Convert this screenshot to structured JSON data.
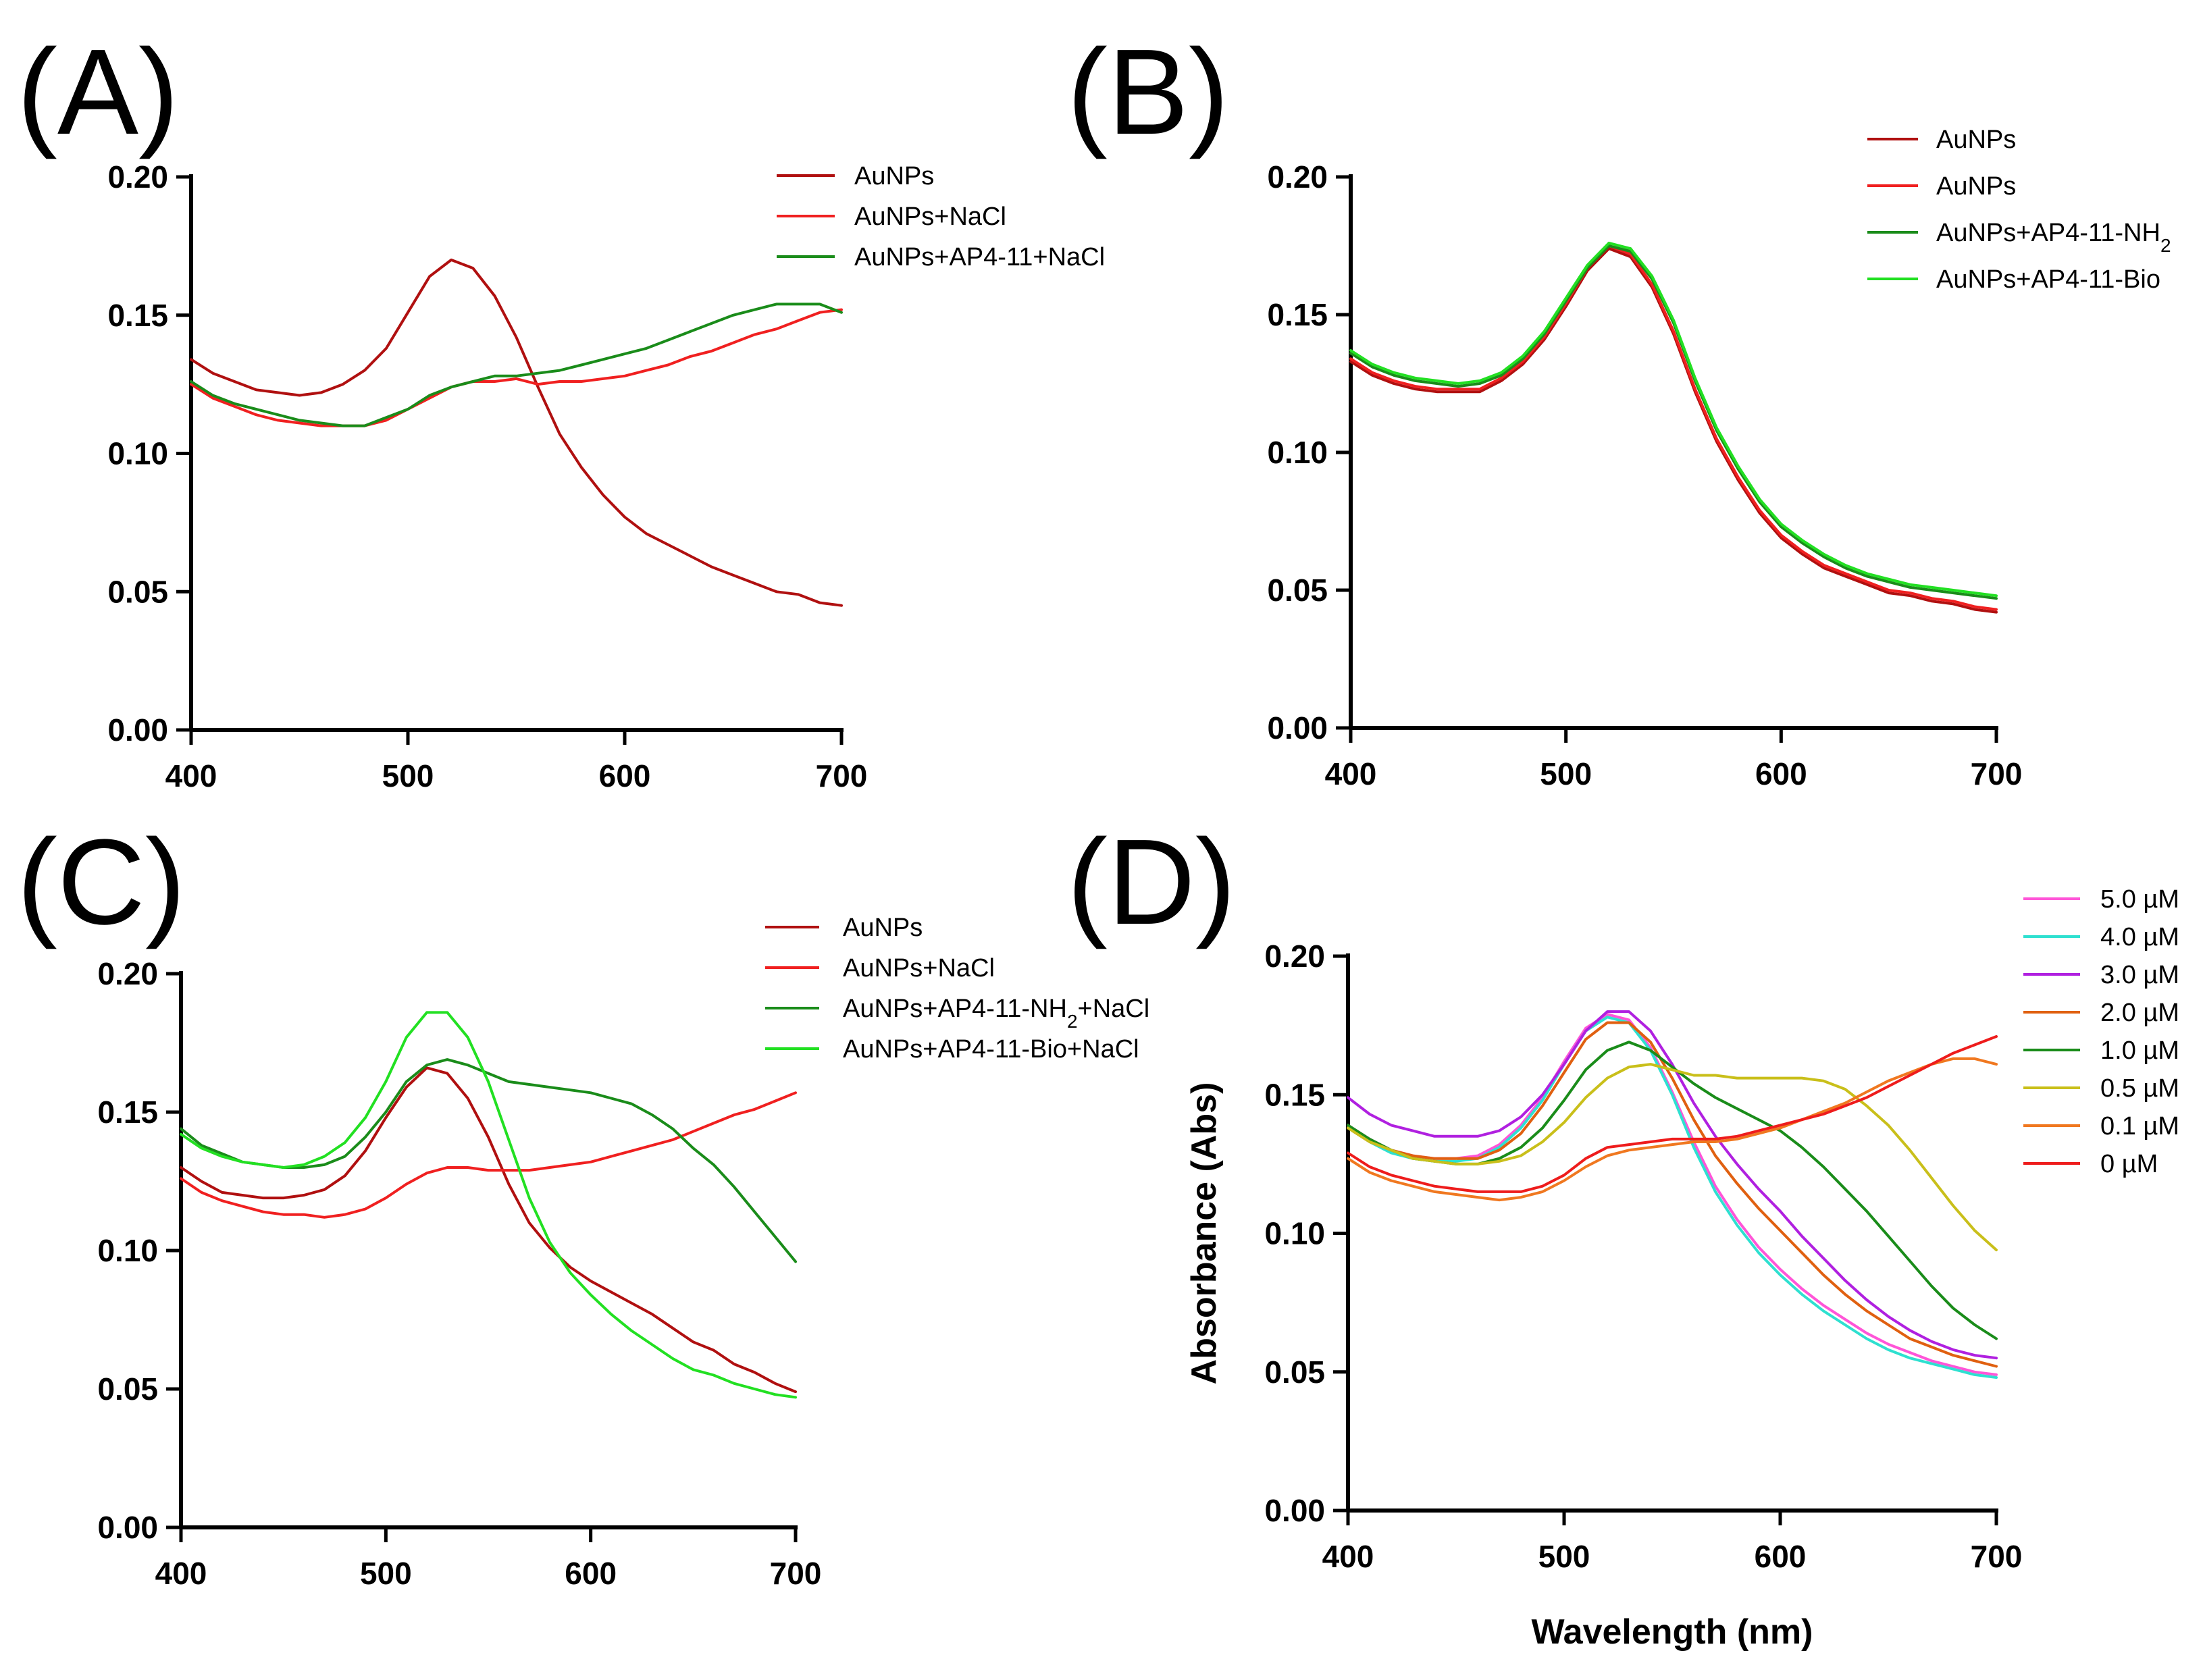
{
  "chart_data": [
    {
      "panel_label": "(A)",
      "type": "line",
      "xlabel": "",
      "ylabel": "",
      "xlim": [
        400,
        700
      ],
      "ylim": [
        0,
        0.2
      ],
      "x_ticks": [
        "400",
        "500",
        "600",
        "700"
      ],
      "y_ticks": [
        "0.00",
        "0.05",
        "0.10",
        "0.15",
        "0.20"
      ],
      "legend_position": "top-right",
      "x": [
        400,
        410,
        420,
        430,
        440,
        450,
        460,
        470,
        480,
        490,
        500,
        510,
        520,
        530,
        540,
        550,
        560,
        570,
        580,
        590,
        600,
        610,
        620,
        630,
        640,
        650,
        660,
        670,
        680,
        690,
        700
      ],
      "series": [
        {
          "name": "AuNPs",
          "name_sub": "",
          "name_after": "",
          "color": "#b01010",
          "values": [
            0.134,
            0.129,
            0.126,
            0.123,
            0.122,
            0.121,
            0.122,
            0.125,
            0.13,
            0.138,
            0.151,
            0.164,
            0.17,
            0.167,
            0.157,
            0.142,
            0.124,
            0.107,
            0.095,
            0.085,
            0.077,
            0.071,
            0.067,
            0.063,
            0.059,
            0.056,
            0.053,
            0.05,
            0.049,
            0.046,
            0.045
          ]
        },
        {
          "name": "AuNPs+NaCl",
          "name_sub": "",
          "name_after": "",
          "color": "#f02020",
          "values": [
            0.125,
            0.12,
            0.117,
            0.114,
            0.112,
            0.111,
            0.11,
            0.11,
            0.11,
            0.112,
            0.116,
            0.12,
            0.124,
            0.126,
            0.126,
            0.127,
            0.125,
            0.126,
            0.126,
            0.127,
            0.128,
            0.13,
            0.132,
            0.135,
            0.137,
            0.14,
            0.143,
            0.145,
            0.148,
            0.151,
            0.152
          ]
        },
        {
          "name": "AuNPs+AP4-11+NaCl",
          "name_sub": "",
          "name_after": "",
          "color": "#1a8c1a",
          "values": [
            0.126,
            0.121,
            0.118,
            0.116,
            0.114,
            0.112,
            0.111,
            0.11,
            0.11,
            0.113,
            0.116,
            0.121,
            0.124,
            0.126,
            0.128,
            0.128,
            0.129,
            0.13,
            0.132,
            0.134,
            0.136,
            0.138,
            0.141,
            0.144,
            0.147,
            0.15,
            0.152,
            0.154,
            0.154,
            0.154,
            0.151
          ]
        }
      ]
    },
    {
      "panel_label": "(B)",
      "type": "line",
      "xlabel": "",
      "ylabel": "",
      "xlim": [
        400,
        700
      ],
      "ylim": [
        0,
        0.2
      ],
      "x_ticks": [
        "400",
        "500",
        "600",
        "700"
      ],
      "y_ticks": [
        "0.00",
        "0.05",
        "0.10",
        "0.15",
        "0.20"
      ],
      "legend_position": "top-right",
      "x": [
        400,
        410,
        420,
        430,
        440,
        450,
        460,
        470,
        480,
        490,
        500,
        510,
        520,
        530,
        540,
        550,
        560,
        570,
        580,
        590,
        600,
        610,
        620,
        630,
        640,
        650,
        660,
        670,
        680,
        690,
        700
      ],
      "series": [
        {
          "name": "AuNPs",
          "name_sub": "",
          "name_after": "",
          "color": "#b01010",
          "values": [
            0.133,
            0.128,
            0.125,
            0.123,
            0.122,
            0.122,
            0.122,
            0.126,
            0.132,
            0.141,
            0.153,
            0.166,
            0.174,
            0.171,
            0.16,
            0.143,
            0.122,
            0.104,
            0.09,
            0.078,
            0.069,
            0.063,
            0.058,
            0.055,
            0.052,
            0.049,
            0.048,
            0.046,
            0.045,
            0.043,
            0.042
          ]
        },
        {
          "name": "AuNPs",
          "name_sub": "",
          "name_after": "",
          "color": "#f02020",
          "values": [
            0.134,
            0.129,
            0.126,
            0.124,
            0.123,
            0.123,
            0.123,
            0.127,
            0.133,
            0.142,
            0.154,
            0.167,
            0.175,
            0.172,
            0.161,
            0.144,
            0.123,
            0.105,
            0.091,
            0.079,
            0.07,
            0.064,
            0.059,
            0.056,
            0.053,
            0.05,
            0.049,
            0.047,
            0.046,
            0.044,
            0.043
          ]
        },
        {
          "name": "AuNPs+AP4-11-NH",
          "name_sub": "2",
          "name_after": "",
          "color": "#1a8c1a",
          "values": [
            0.136,
            0.131,
            0.128,
            0.126,
            0.125,
            0.124,
            0.125,
            0.128,
            0.134,
            0.143,
            0.155,
            0.167,
            0.175,
            0.173,
            0.163,
            0.147,
            0.126,
            0.108,
            0.094,
            0.082,
            0.073,
            0.067,
            0.062,
            0.058,
            0.055,
            0.053,
            0.051,
            0.05,
            0.049,
            0.048,
            0.047
          ]
        },
        {
          "name": "AuNPs+AP4-11-Bio",
          "name_sub": "",
          "name_after": "",
          "color": "#22e022",
          "values": [
            0.137,
            0.132,
            0.129,
            0.127,
            0.126,
            0.125,
            0.126,
            0.129,
            0.135,
            0.144,
            0.156,
            0.168,
            0.176,
            0.174,
            0.164,
            0.148,
            0.127,
            0.109,
            0.095,
            0.083,
            0.074,
            0.068,
            0.063,
            0.059,
            0.056,
            0.054,
            0.052,
            0.051,
            0.05,
            0.049,
            0.048
          ]
        }
      ]
    },
    {
      "panel_label": "(C)",
      "type": "line",
      "xlabel": "",
      "ylabel": "",
      "xlim": [
        400,
        700
      ],
      "ylim": [
        0,
        0.2
      ],
      "x_ticks": [
        "400",
        "500",
        "600",
        "700"
      ],
      "y_ticks": [
        "0.00",
        "0.05",
        "0.10",
        "0.15",
        "0.20"
      ],
      "legend_position": "top-right",
      "x": [
        400,
        410,
        420,
        430,
        440,
        450,
        460,
        470,
        480,
        490,
        500,
        510,
        520,
        530,
        540,
        550,
        560,
        570,
        580,
        590,
        600,
        610,
        620,
        630,
        640,
        650,
        660,
        670,
        680,
        690,
        700
      ],
      "series": [
        {
          "name": "AuNPs",
          "name_sub": "",
          "name_after": "",
          "color": "#b01010",
          "values": [
            0.13,
            0.125,
            0.121,
            0.12,
            0.119,
            0.119,
            0.12,
            0.122,
            0.127,
            0.136,
            0.148,
            0.159,
            0.166,
            0.164,
            0.155,
            0.141,
            0.124,
            0.11,
            0.101,
            0.094,
            0.089,
            0.085,
            0.081,
            0.077,
            0.072,
            0.067,
            0.064,
            0.059,
            0.056,
            0.052,
            0.049
          ]
        },
        {
          "name": "AuNPs+NaCl",
          "name_sub": "",
          "name_after": "",
          "color": "#f02020",
          "values": [
            0.126,
            0.121,
            0.118,
            0.116,
            0.114,
            0.113,
            0.113,
            0.112,
            0.113,
            0.115,
            0.119,
            0.124,
            0.128,
            0.13,
            0.13,
            0.129,
            0.129,
            0.129,
            0.13,
            0.131,
            0.132,
            0.134,
            0.136,
            0.138,
            0.14,
            0.143,
            0.146,
            0.149,
            0.151,
            0.154,
            0.157
          ]
        },
        {
          "name": "AuNPs+AP4-11-NH",
          "name_sub": "2",
          "name_after": "+NaCl",
          "color": "#1a8c1a",
          "values": [
            0.144,
            0.138,
            0.135,
            0.132,
            0.131,
            0.13,
            0.13,
            0.131,
            0.134,
            0.141,
            0.15,
            0.161,
            0.167,
            0.169,
            0.167,
            0.164,
            0.161,
            0.16,
            0.159,
            0.158,
            0.157,
            0.155,
            0.153,
            0.149,
            0.144,
            0.137,
            0.131,
            0.123,
            0.114,
            0.105,
            0.096
          ]
        },
        {
          "name": "AuNPs+AP4-11-Bio+NaCl",
          "name_sub": "",
          "name_after": "",
          "color": "#22e022",
          "values": [
            0.142,
            0.137,
            0.134,
            0.132,
            0.131,
            0.13,
            0.131,
            0.134,
            0.139,
            0.148,
            0.161,
            0.177,
            0.186,
            0.186,
            0.177,
            0.161,
            0.14,
            0.119,
            0.103,
            0.092,
            0.084,
            0.077,
            0.071,
            0.066,
            0.061,
            0.057,
            0.055,
            0.052,
            0.05,
            0.048,
            0.047
          ]
        }
      ]
    },
    {
      "panel_label": "(D)",
      "type": "line",
      "xlabel": "Wavelength (nm)",
      "ylabel": "Absorbance (Abs)",
      "xlim": [
        400,
        700
      ],
      "ylim": [
        0,
        0.2
      ],
      "x_ticks": [
        "400",
        "500",
        "600",
        "700"
      ],
      "y_ticks": [
        "0.00",
        "0.05",
        "0.10",
        "0.15",
        "0.20"
      ],
      "legend_position": "top-right",
      "x": [
        400,
        410,
        420,
        430,
        440,
        450,
        460,
        470,
        480,
        490,
        500,
        510,
        520,
        530,
        540,
        550,
        560,
        570,
        580,
        590,
        600,
        610,
        620,
        630,
        640,
        650,
        660,
        670,
        680,
        690,
        700
      ],
      "series": [
        {
          "name": "5.0 µM",
          "name_sub": "",
          "name_after": "",
          "color": "#ff55d8",
          "values": [
            0.139,
            0.134,
            0.13,
            0.128,
            0.127,
            0.127,
            0.128,
            0.132,
            0.139,
            0.149,
            0.162,
            0.174,
            0.179,
            0.177,
            0.167,
            0.151,
            0.133,
            0.117,
            0.105,
            0.095,
            0.087,
            0.08,
            0.074,
            0.069,
            0.064,
            0.06,
            0.057,
            0.054,
            0.052,
            0.05,
            0.049
          ]
        },
        {
          "name": "4.0 µM",
          "name_sub": "",
          "name_after": "",
          "color": "#2ee0d0",
          "values": [
            0.138,
            0.133,
            0.129,
            0.127,
            0.126,
            0.126,
            0.127,
            0.131,
            0.138,
            0.148,
            0.161,
            0.173,
            0.178,
            0.176,
            0.166,
            0.15,
            0.131,
            0.115,
            0.103,
            0.093,
            0.085,
            0.078,
            0.072,
            0.067,
            0.062,
            0.058,
            0.055,
            0.053,
            0.051,
            0.049,
            0.048
          ]
        },
        {
          "name": "3.0 µM",
          "name_sub": "",
          "name_after": "",
          "color": "#b020e0",
          "values": [
            0.149,
            0.143,
            0.139,
            0.137,
            0.135,
            0.135,
            0.135,
            0.137,
            0.142,
            0.15,
            0.161,
            0.173,
            0.18,
            0.18,
            0.173,
            0.161,
            0.147,
            0.135,
            0.125,
            0.116,
            0.108,
            0.099,
            0.091,
            0.083,
            0.076,
            0.07,
            0.065,
            0.061,
            0.058,
            0.056,
            0.055
          ]
        },
        {
          "name": "2.0 µM",
          "name_sub": "",
          "name_after": "",
          "color": "#e06010",
          "values": [
            0.138,
            0.133,
            0.13,
            0.128,
            0.127,
            0.127,
            0.127,
            0.13,
            0.136,
            0.146,
            0.158,
            0.17,
            0.176,
            0.176,
            0.169,
            0.156,
            0.141,
            0.128,
            0.118,
            0.109,
            0.101,
            0.093,
            0.085,
            0.078,
            0.072,
            0.067,
            0.062,
            0.059,
            0.056,
            0.054,
            0.052
          ]
        },
        {
          "name": "1.0 µM",
          "name_sub": "",
          "name_after": "",
          "color": "#1a8c1a",
          "values": [
            0.139,
            0.134,
            0.13,
            0.127,
            0.126,
            0.125,
            0.125,
            0.127,
            0.131,
            0.138,
            0.148,
            0.159,
            0.166,
            0.169,
            0.166,
            0.16,
            0.154,
            0.149,
            0.145,
            0.141,
            0.137,
            0.131,
            0.124,
            0.116,
            0.108,
            0.099,
            0.09,
            0.081,
            0.073,
            0.067,
            0.062
          ]
        },
        {
          "name": "0.5 µM",
          "name_sub": "",
          "name_after": "",
          "color": "#c9bf1a",
          "values": [
            0.138,
            0.133,
            0.13,
            0.127,
            0.126,
            0.125,
            0.125,
            0.126,
            0.128,
            0.133,
            0.14,
            0.149,
            0.156,
            0.16,
            0.161,
            0.159,
            0.157,
            0.157,
            0.156,
            0.156,
            0.156,
            0.156,
            0.155,
            0.152,
            0.146,
            0.139,
            0.13,
            0.12,
            0.11,
            0.101,
            0.094
          ]
        },
        {
          "name": "0.1 µM",
          "name_sub": "",
          "name_after": "",
          "color": "#f07820",
          "values": [
            0.127,
            0.122,
            0.119,
            0.117,
            0.115,
            0.114,
            0.113,
            0.112,
            0.113,
            0.115,
            0.119,
            0.124,
            0.128,
            0.13,
            0.131,
            0.132,
            0.133,
            0.133,
            0.134,
            0.136,
            0.138,
            0.141,
            0.144,
            0.147,
            0.151,
            0.155,
            0.158,
            0.161,
            0.163,
            0.163,
            0.161
          ]
        },
        {
          "name": "0 µM",
          "name_sub": "",
          "name_after": "",
          "color": "#ee1c1c",
          "values": [
            0.129,
            0.124,
            0.121,
            0.119,
            0.117,
            0.116,
            0.115,
            0.115,
            0.115,
            0.117,
            0.121,
            0.127,
            0.131,
            0.132,
            0.133,
            0.134,
            0.134,
            0.134,
            0.135,
            0.137,
            0.139,
            0.141,
            0.143,
            0.146,
            0.149,
            0.153,
            0.157,
            0.161,
            0.165,
            0.168,
            0.171
          ]
        }
      ]
    }
  ]
}
